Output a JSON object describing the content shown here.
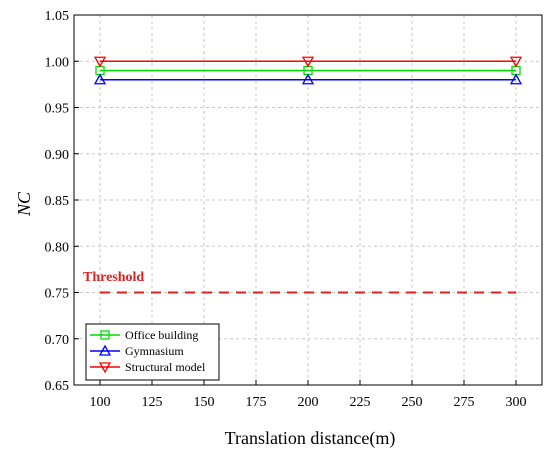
{
  "chart_data": {
    "type": "line",
    "xlabel": "Translation distance(m)",
    "ylabel": "NC",
    "xlim": [
      87.5,
      312.5
    ],
    "ylim": [
      0.65,
      1.05
    ],
    "xticks": [
      100,
      125,
      150,
      175,
      200,
      225,
      250,
      275,
      300
    ],
    "yticks": [
      "0.65",
      "0.70",
      "0.75",
      "0.80",
      "0.85",
      "0.90",
      "0.95",
      "1.00",
      "1.05"
    ],
    "grid": true,
    "legend_position": "bottom-left",
    "series": [
      {
        "name": "Office building",
        "color": "#00dd00",
        "marker": "square",
        "x": [
          100,
          200,
          300
        ],
        "y": [
          0.99,
          0.99,
          0.99
        ]
      },
      {
        "name": "Gymnasium",
        "color": "#0000ff",
        "marker": "triangle-up",
        "x": [
          100,
          200,
          300
        ],
        "y": [
          0.98,
          0.98,
          0.98
        ]
      },
      {
        "name": "Structural model",
        "color": "#ff0000",
        "marker": "triangle-down",
        "x": [
          100,
          200,
          300
        ],
        "y": [
          1.0,
          1.0,
          1.0
        ]
      }
    ],
    "threshold": {
      "label": "Threshold",
      "value": 0.75,
      "x": [
        100,
        300
      ],
      "color": "#e02020"
    }
  }
}
